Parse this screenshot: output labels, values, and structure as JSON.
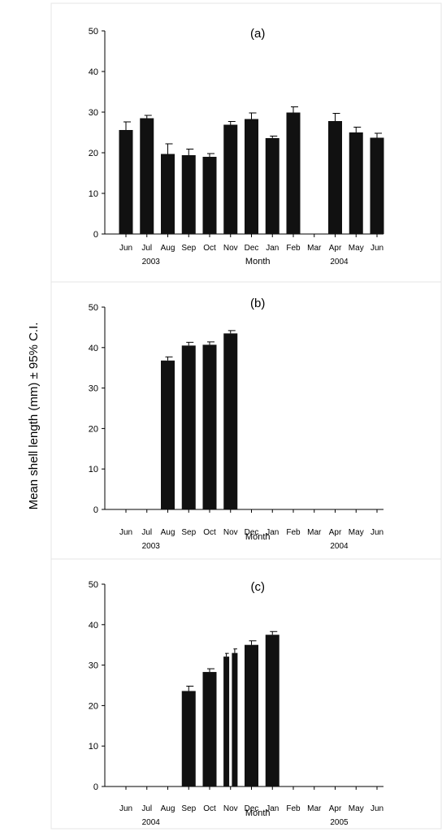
{
  "ylabel": "Mean shell length (mm) ± 95% C.I.",
  "xlabel": "Month",
  "chart_data": [
    {
      "type": "bar",
      "panel_label": "(a)",
      "categories": [
        "Jun",
        "Jul",
        "Aug",
        "Sep",
        "Oct",
        "Nov",
        "Dec",
        "Jan",
        "Feb",
        "Mar",
        "Apr",
        "May",
        "Jun"
      ],
      "years": [
        {
          "label": "2003",
          "under_index": 1
        },
        {
          "label": "2004",
          "under_index": 10
        }
      ],
      "bars": [
        {
          "x": 0,
          "value": 25.6,
          "ci": 2.0
        },
        {
          "x": 1,
          "value": 28.5,
          "ci": 0.7
        },
        {
          "x": 2,
          "value": 19.7,
          "ci": 2.5
        },
        {
          "x": 3,
          "value": 19.4,
          "ci": 1.5
        },
        {
          "x": 4,
          "value": 19.0,
          "ci": 0.8
        },
        {
          "x": 5,
          "value": 26.9,
          "ci": 0.8
        },
        {
          "x": 6,
          "value": 28.3,
          "ci": 1.5
        },
        {
          "x": 7,
          "value": 23.6,
          "ci": 0.5
        },
        {
          "x": 8,
          "value": 29.9,
          "ci": 1.4
        },
        {
          "x": 10,
          "value": 27.8,
          "ci": 1.9
        },
        {
          "x": 11,
          "value": 25.0,
          "ci": 1.3
        },
        {
          "x": 12,
          "value": 23.7,
          "ci": 1.1
        }
      ],
      "ylim": [
        0,
        50
      ],
      "yticks": [
        0,
        10,
        20,
        30,
        40,
        50
      ]
    },
    {
      "type": "bar",
      "panel_label": "(b)",
      "categories": [
        "Jun",
        "Jul",
        "Aug",
        "Sep",
        "Oct",
        "Nov",
        "Dec",
        "Jan",
        "Feb",
        "Mar",
        "Apr",
        "May",
        "Jun"
      ],
      "years": [
        {
          "label": "2003",
          "under_index": 1
        },
        {
          "label": "2004",
          "under_index": 10
        }
      ],
      "bars": [
        {
          "x": 2,
          "value": 36.8,
          "ci": 0.9
        },
        {
          "x": 3,
          "value": 40.5,
          "ci": 0.8
        },
        {
          "x": 4,
          "value": 40.7,
          "ci": 0.7
        },
        {
          "x": 5,
          "value": 43.5,
          "ci": 0.7
        }
      ],
      "ylim": [
        0,
        50
      ],
      "yticks": [
        0,
        10,
        20,
        30,
        40,
        50
      ]
    },
    {
      "type": "bar",
      "panel_label": "(c)",
      "categories": [
        "Jun",
        "Jul",
        "Aug",
        "Sep",
        "Oct",
        "Nov",
        "Dec",
        "Jan",
        "Feb",
        "Mar",
        "Apr",
        "May",
        "Jun"
      ],
      "years": [
        {
          "label": "2004",
          "under_index": 1
        },
        {
          "label": "2005",
          "under_index": 10
        }
      ],
      "bars": [
        {
          "x": 3,
          "value": 23.6,
          "ci": 1.2
        },
        {
          "x": 4,
          "value": 28.3,
          "ci": 0.8
        },
        {
          "x": 4.8,
          "value": 32.1,
          "ci": 0.8,
          "narrow": true
        },
        {
          "x": 5.2,
          "value": 33.0,
          "ci": 1.0,
          "narrow": true
        },
        {
          "x": 6,
          "value": 35.0,
          "ci": 1.0
        },
        {
          "x": 7,
          "value": 37.5,
          "ci": 0.8
        }
      ],
      "ylim": [
        0,
        50
      ],
      "yticks": [
        0,
        10,
        20,
        30,
        40,
        50
      ]
    }
  ]
}
